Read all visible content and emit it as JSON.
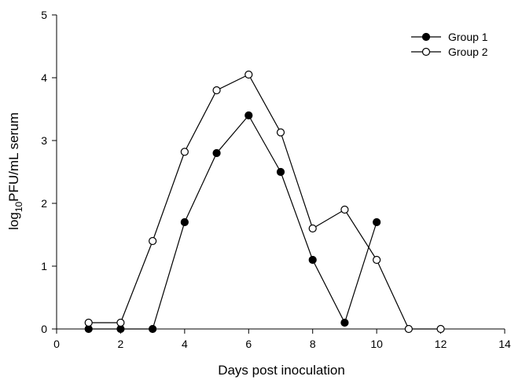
{
  "chart_data": {
    "type": "line",
    "xlabel": "Days post inoculation",
    "ylabel": {
      "prefix": "log",
      "subscript": "10",
      "suffix": "PFU/mL serum"
    },
    "xlim": [
      0,
      14
    ],
    "ylim": [
      0,
      5
    ],
    "x_ticks": [
      "0",
      "2",
      "4",
      "6",
      "8",
      "10",
      "12",
      "14"
    ],
    "y_ticks": [
      "0",
      "1",
      "2",
      "3",
      "4",
      "5"
    ],
    "grid": false,
    "legend_position": "top-right",
    "series": [
      {
        "name": "Group 1",
        "marker": "filled-circle",
        "x": [
          1,
          2,
          3,
          4,
          5,
          6,
          7,
          8,
          9,
          10
        ],
        "y": [
          0,
          0,
          0,
          1.7,
          2.8,
          3.4,
          2.5,
          1.1,
          0.1,
          1.7
        ]
      },
      {
        "name": "Group 2",
        "marker": "open-circle",
        "x": [
          1,
          2,
          3,
          4,
          5,
          6,
          7,
          8,
          9,
          10,
          11,
          12
        ],
        "y": [
          0.1,
          0.1,
          1.4,
          2.82,
          3.8,
          4.05,
          3.13,
          1.6,
          1.9,
          1.1,
          0,
          0
        ]
      }
    ]
  }
}
